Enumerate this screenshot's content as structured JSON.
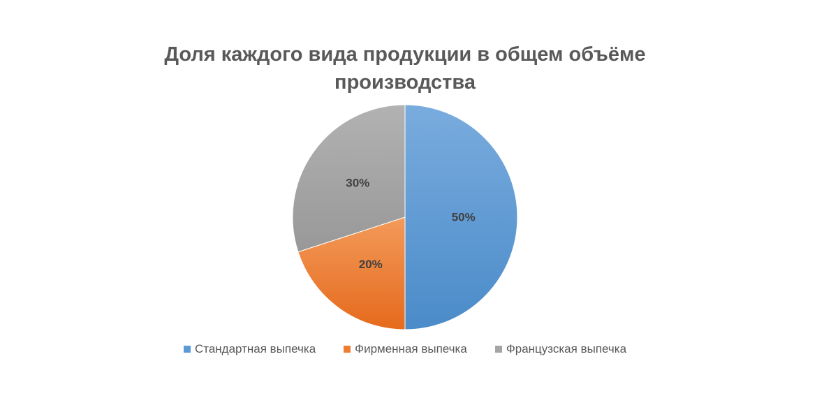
{
  "chart_data": {
    "type": "pie",
    "title_lines": [
      "Доля каждого вида продукции в общем объёме",
      "производства"
    ],
    "categories": [
      "Стандартная выпечка",
      "Фирменная выпечка",
      "Французская выпечка"
    ],
    "values": [
      50,
      20,
      30
    ],
    "labels": [
      "50%",
      "20%",
      "30%"
    ],
    "colors": [
      "#5b9bd5",
      "#ed7d31",
      "#a5a5a5"
    ],
    "legend_position": "bottom"
  }
}
